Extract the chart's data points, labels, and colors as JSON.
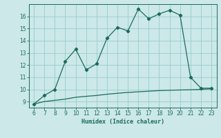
{
  "xlabel": "Humidex (Indice chaleur)",
  "x_curve": [
    6,
    7,
    8,
    9,
    10,
    11,
    12,
    13,
    14,
    15,
    16,
    17,
    18,
    19,
    20,
    21,
    22,
    23
  ],
  "y_curve": [
    8.8,
    9.5,
    10.0,
    12.3,
    13.3,
    11.6,
    12.1,
    14.2,
    15.1,
    14.8,
    16.6,
    15.8,
    16.2,
    16.5,
    16.1,
    11.0,
    10.1,
    10.1
  ],
  "x_base": [
    6,
    7,
    8,
    9,
    10,
    11,
    12,
    13,
    14,
    15,
    16,
    17,
    18,
    19,
    20,
    21,
    22,
    23
  ],
  "y_base": [
    8.8,
    9.0,
    9.1,
    9.2,
    9.35,
    9.43,
    9.5,
    9.6,
    9.68,
    9.75,
    9.8,
    9.85,
    9.9,
    9.93,
    9.95,
    9.97,
    10.0,
    10.05
  ],
  "line_color": "#1a6b5a",
  "bg_color": "#cce8e8",
  "grid_color": "#99cccc",
  "xlim": [
    5.5,
    23.5
  ],
  "ylim": [
    8.5,
    17.0
  ],
  "xticks": [
    6,
    7,
    8,
    9,
    10,
    11,
    12,
    13,
    14,
    15,
    16,
    17,
    18,
    19,
    20,
    21,
    22,
    23
  ],
  "yticks": [
    9,
    10,
    11,
    12,
    13,
    14,
    15,
    16
  ]
}
